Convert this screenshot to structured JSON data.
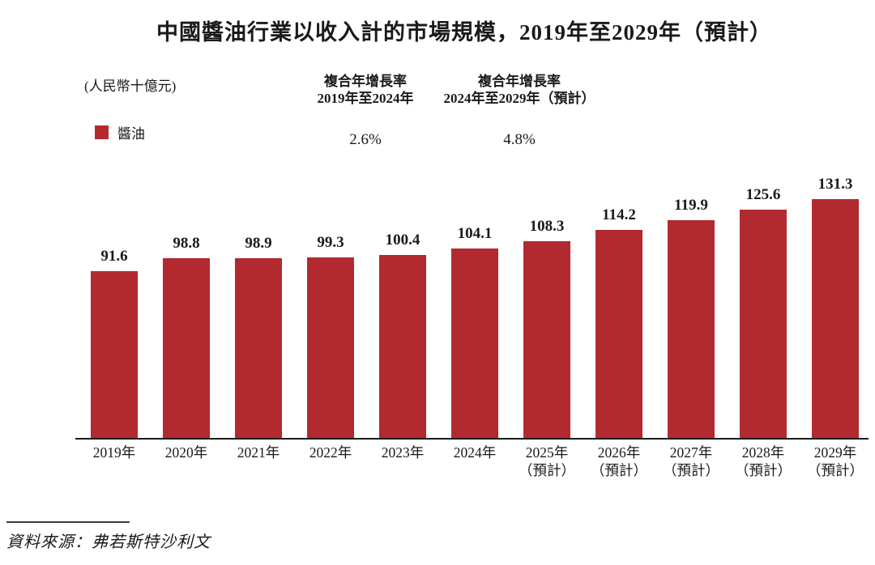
{
  "chart_data": {
    "type": "bar",
    "title": "中國醬油行業以收入計的市場規模，2019年至2029年（預計）",
    "unit_label": "(人民幣十億元)",
    "legend": [
      {
        "name": "醬油",
        "color": "#B22A2F"
      }
    ],
    "legend_position": "top-left",
    "bar_color": "#B22A2F",
    "categories": [
      "2019年",
      "2020年",
      "2021年",
      "2022年",
      "2023年",
      "2024年",
      "2025年（預計）",
      "2026年（預計）",
      "2027年（預計）",
      "2028年（預計）",
      "2029年（預計）"
    ],
    "tick_lines": [
      [
        "2019年"
      ],
      [
        "2020年"
      ],
      [
        "2021年"
      ],
      [
        "2022年"
      ],
      [
        "2023年"
      ],
      [
        "2024年"
      ],
      [
        "2025年",
        "（預計）"
      ],
      [
        "2026年",
        "（預計）"
      ],
      [
        "2027年",
        "（預計）"
      ],
      [
        "2028年",
        "（預計）"
      ],
      [
        "2029年",
        "（預計）"
      ]
    ],
    "series": [
      {
        "name": "醬油",
        "values": [
          91.6,
          98.8,
          98.9,
          99.3,
          100.4,
          104.1,
          108.3,
          114.2,
          119.9,
          125.6,
          131.3
        ]
      }
    ],
    "value_labels": [
      "91.6",
      "98.8",
      "98.9",
      "99.3",
      "100.4",
      "104.1",
      "108.3",
      "114.2",
      "119.9",
      "125.6",
      "131.3"
    ],
    "annotations": [
      {
        "title_lines": [
          "複合年增長率",
          "2019年至2024年"
        ],
        "value": "2.6%"
      },
      {
        "title_lines": [
          "複合年增長率",
          "2024年至2029年（預計）"
        ],
        "value": "4.8%"
      }
    ],
    "ylim": [
      0,
      140
    ],
    "grid": false,
    "xlabel": "",
    "ylabel": "人民幣十億元",
    "source": "資料來源：弗若斯特沙利文"
  }
}
